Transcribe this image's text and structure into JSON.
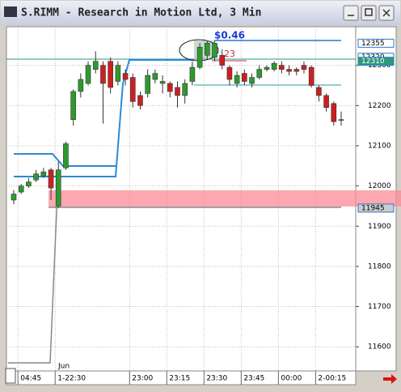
{
  "window_title": "S.RIMM - Research in Motion Ltd, 3 Min",
  "chart_data": {
    "type": "candlestick",
    "up_color": "#2e9a2e",
    "down_color": "#cc2020",
    "categories": [
      null,
      "04:45",
      null,
      null,
      null,
      null,
      "1-22:30",
      null,
      null,
      null,
      null,
      null,
      null,
      null,
      null,
      null,
      "23:00",
      null,
      null,
      null,
      null,
      "23:15",
      null,
      null,
      null,
      null,
      "23:30",
      null,
      null,
      null,
      null,
      "23:45",
      null,
      null,
      null,
      null,
      "00:00",
      null,
      null,
      null,
      null,
      "2-00:15",
      null,
      null,
      null
    ],
    "open": [
      11965,
      11985,
      12000,
      12015,
      12025,
      12040,
      11950,
      12045,
      12165,
      12235,
      12255,
      12290,
      12300,
      12310,
      12260,
      12280,
      12270,
      12225,
      12230,
      12265,
      12255,
      12255,
      12245,
      12225,
      12260,
      12295,
      12325,
      12320,
      12325,
      12295,
      12255,
      12280,
      12255,
      12270,
      12290,
      12290,
      12300,
      12290,
      12290,
      12300,
      12295,
      12245,
      12225,
      12205,
      12165
    ],
    "high": [
      11990,
      12005,
      12020,
      12040,
      12045,
      12045,
      12060,
      12110,
      12240,
      12280,
      12310,
      12335,
      12310,
      12320,
      12310,
      12290,
      12280,
      12235,
      12290,
      12290,
      12275,
      12260,
      12260,
      12265,
      12310,
      12355,
      12360,
      12360,
      12340,
      12300,
      12285,
      12290,
      12280,
      12300,
      12300,
      12310,
      12310,
      12300,
      12295,
      12310,
      12300,
      12250,
      12230,
      12210,
      12185
    ],
    "low": [
      11955,
      11980,
      11995,
      12010,
      12020,
      11965,
      11945,
      12040,
      12150,
      12220,
      12250,
      12280,
      12155,
      12230,
      12250,
      12250,
      12195,
      12190,
      12220,
      12255,
      12230,
      12220,
      12195,
      12205,
      12250,
      12290,
      12315,
      12310,
      12290,
      12250,
      12245,
      12250,
      12245,
      12265,
      12285,
      12285,
      12280,
      12275,
      12275,
      12280,
      12245,
      12210,
      12185,
      12150,
      12150
    ],
    "close": [
      11980,
      12000,
      12010,
      12030,
      12035,
      11995,
      12040,
      12105,
      12235,
      12265,
      12300,
      12310,
      12255,
      12245,
      12300,
      12265,
      12210,
      12200,
      12275,
      12280,
      12260,
      12235,
      12225,
      12255,
      12295,
      12345,
      12355,
      12355,
      12300,
      12265,
      12275,
      12260,
      12270,
      12290,
      12295,
      12305,
      12290,
      12285,
      12285,
      12290,
      12250,
      12225,
      12195,
      12160,
      12165
    ],
    "ylim": [
      11540,
      12396
    ],
    "yticks": [
      11600,
      11700,
      11800,
      11900,
      12000,
      12100,
      12200,
      12300
    ],
    "price_tags": [
      12355,
      12320,
      12310,
      11945
    ],
    "annotations": [
      "$0.46",
      "23"
    ],
    "month_label": "Jun"
  }
}
